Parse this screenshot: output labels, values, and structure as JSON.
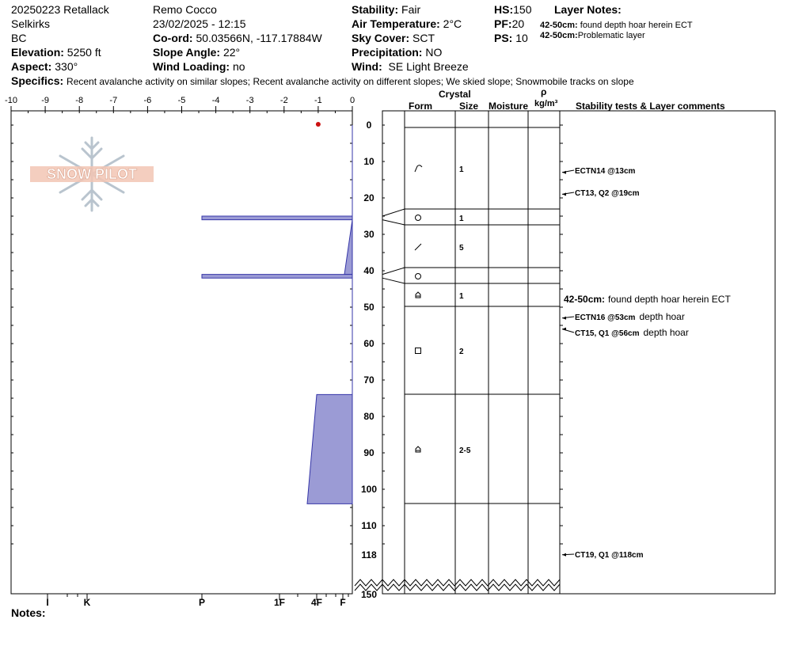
{
  "header": {
    "col1": [
      "20250223 Retallack",
      "Selkirks",
      "BC"
    ],
    "elevation_label": "Elevation:",
    "elevation": "5250 ft",
    "aspect_label": "Aspect:",
    "aspect": "330°",
    "observer": "Remo Cocco",
    "datetime": "23/02/2025 - 12:15",
    "coord_label": "Co-ord:",
    "coord": "50.03566N, -117.17884W",
    "slope_label": "Slope Angle:",
    "slope": "22°",
    "wind_loading_label": "Wind Loading:",
    "wind_loading": "no",
    "stability_label": "Stability:",
    "stability": "Fair",
    "air_temp_label": "Air Temperature:",
    "air_temp": "2°C",
    "sky_label": "Sky Cover:",
    "sky": "SCT",
    "precip_label": "Precipitation:",
    "precip": "NO",
    "wind_label": "Wind:",
    "wind": "SE Light Breeze",
    "hs_label": "HS:",
    "hs": "150",
    "pf_label": "PF:",
    "pf": "20",
    "ps_label": "PS:",
    "ps": "10",
    "layer_notes_title": "Layer Notes:",
    "layer_notes": [
      {
        "range": "42-50cm:",
        "text": "found depth hoar herein ECT"
      },
      {
        "range": "42-50cm:",
        "text": "Problematic layer"
      }
    ],
    "specifics_label": "Specifics:",
    "specifics": "Recent avalanche activity on similar slopes; Recent avalanche activity on different slopes; We skied slope; Snowmobile tracks on slope"
  },
  "logo_text": "SNOW PILOT",
  "notes_label": "Notes:",
  "columns": {
    "crystal": "Crystal",
    "form": "Form",
    "size": "Size",
    "moisture": "Moisture",
    "rho": "ρ",
    "rho_unit": "kg/m³",
    "tests": "Stability tests & Layer comments"
  },
  "chart_data": {
    "type": "snow_profile",
    "temp_axis": {
      "ticks": [
        "-10",
        "-9",
        "-8",
        "-7",
        "-6",
        "-5",
        "-4",
        "-3",
        "-2",
        "-1",
        "0"
      ],
      "range": [
        -10,
        0
      ]
    },
    "hardness_axis": {
      "labels": [
        "I",
        "K",
        "P",
        "1F",
        "4F",
        "F"
      ]
    },
    "depth_axis": {
      "ticks": [
        "0",
        "10",
        "20",
        "30",
        "40",
        "50",
        "60",
        "70",
        "80",
        "90",
        "100",
        "110",
        "118",
        "150"
      ],
      "range": [
        0,
        150
      ],
      "break_after": 118
    },
    "temperature_points": [
      {
        "depth": 0,
        "temp": -1
      }
    ],
    "hardness_profile": [
      {
        "top": 0,
        "bottom": 25,
        "hardness_top": "F",
        "hardness_bottom": "F"
      },
      {
        "top": 25,
        "bottom": 26,
        "hardness_top": "P",
        "hardness_bottom": "P"
      },
      {
        "top": 26,
        "bottom": 41,
        "hardness_top": "F",
        "hardness_bottom": "F+"
      },
      {
        "top": 41,
        "bottom": 42,
        "hardness_top": "P",
        "hardness_bottom": "P"
      },
      {
        "top": 42,
        "bottom": 74,
        "hardness_top": "F",
        "hardness_bottom": "F"
      },
      {
        "top": 74,
        "bottom": 104,
        "hardness_top": "4F",
        "hardness_bottom": "4F+"
      }
    ],
    "layer_boundaries": [
      0,
      23,
      27,
      39,
      44,
      50,
      74,
      104
    ],
    "layers": [
      {
        "depth": 12,
        "form": "decomposing-icon",
        "size": "1"
      },
      {
        "depth": 25,
        "form": "rounded-icon",
        "size": "1"
      },
      {
        "depth": 33,
        "form": "faceted-slash-icon",
        "size": "5"
      },
      {
        "depth": 41,
        "form": "rounded-icon",
        "size": ""
      },
      {
        "depth": 47,
        "form": "depth-hoar-icon",
        "size": "1"
      },
      {
        "depth": 62,
        "form": "faceted-icon",
        "size": "2"
      },
      {
        "depth": 89,
        "form": "depth-hoar-icon",
        "size": "2-5"
      }
    ],
    "tests": [
      {
        "depth": 13,
        "label": "ECTN14 @13cm",
        "comment": ""
      },
      {
        "depth": 19,
        "label": "CT13, Q2 @19cm",
        "comment": ""
      },
      {
        "depth": 53,
        "label": "ECTN16 @53cm",
        "comment": "depth hoar"
      },
      {
        "depth": 56,
        "label": "CT15, Q1 @56cm",
        "comment": "depth hoar"
      },
      {
        "depth": 118,
        "label": "CT19, Q1 @118cm",
        "comment": ""
      }
    ],
    "layer_comment": {
      "depth": 47,
      "range": "42-50cm:",
      "text": "found depth hoar herein ECT"
    },
    "colors": {
      "hardness_fill": "#9b9bd5",
      "hardness_stroke": "#3636a8",
      "temp_point": "#cc1010"
    }
  }
}
